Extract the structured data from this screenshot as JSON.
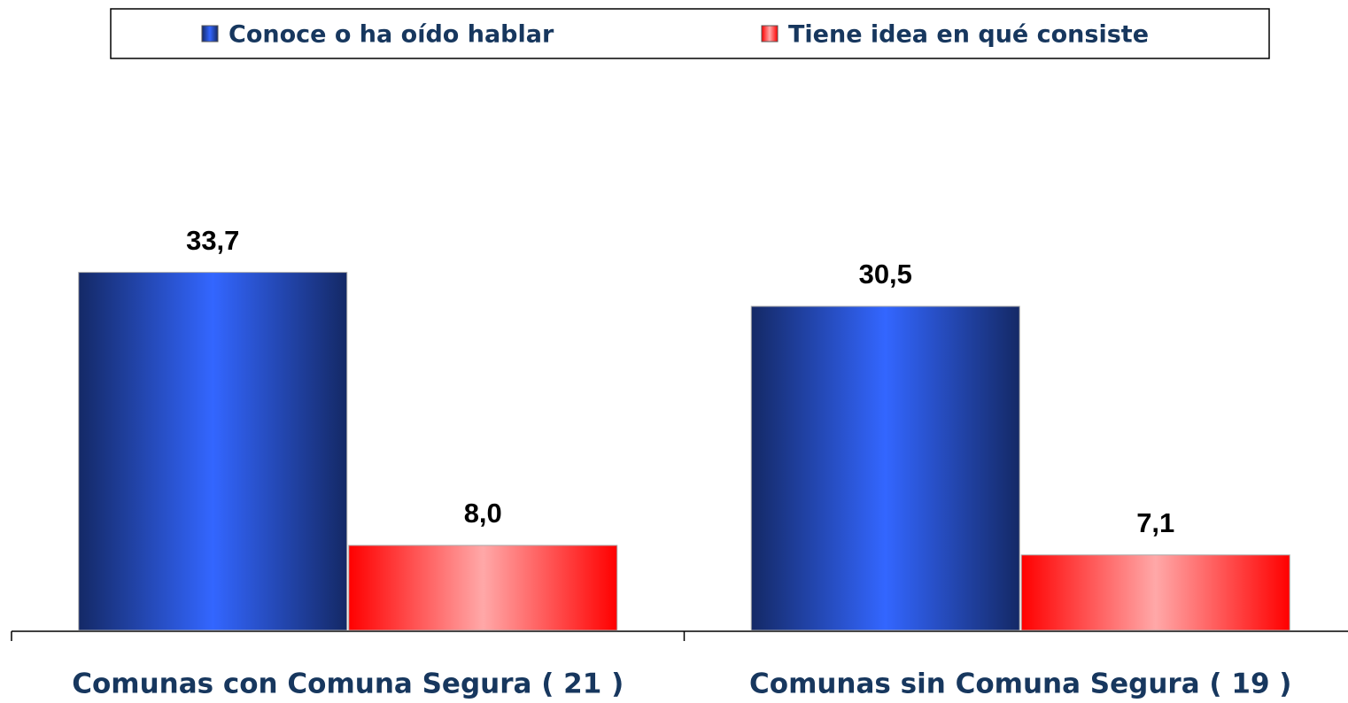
{
  "chart_data": {
    "type": "bar",
    "categories": [
      "Comunas con Comuna Segura ( 21 )",
      "Comunas sin Comuna Segura ( 19 )"
    ],
    "series": [
      {
        "name": "Conoce o ha oído hablar",
        "color": "#3366ff",
        "values": [
          33.7,
          30.5
        ],
        "value_labels": [
          "33,7",
          "30,5"
        ]
      },
      {
        "name": "Tiene idea en qué consiste",
        "color": "#ff0000",
        "values": [
          8.0,
          7.1
        ],
        "value_labels": [
          "8,0",
          "7,1"
        ]
      }
    ],
    "ylim": [
      0,
      40
    ],
    "legend": "top"
  }
}
